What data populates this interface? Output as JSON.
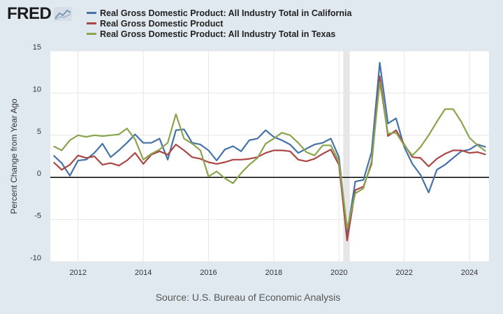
{
  "logo": {
    "text": "FRED",
    "icon": "line-graph-icon"
  },
  "source": "Source: U.S. Bureau of Economic Analysis",
  "colors": {
    "california": "#4572a7",
    "us": "#aa4643",
    "texas": "#89a54e",
    "background": "#e1e9f0",
    "plot_background": "#ffffff",
    "grid": "#e6e6e6",
    "zero_line": "#000000",
    "recession": "#e6e6e6"
  },
  "chart_data": {
    "type": "line",
    "title": "",
    "xlabel": "",
    "ylabel": "Percent Change from Year Ago",
    "xlim": [
      2011.15,
      2024.6
    ],
    "ylim": [
      -10,
      15
    ],
    "yticks": [
      "15",
      "10",
      "5",
      "0",
      "-5",
      "-10"
    ],
    "ytick_values": [
      15,
      10,
      5,
      0,
      -5,
      -10
    ],
    "xticks": [
      "2012",
      "2014",
      "2016",
      "2018",
      "2020",
      "2022",
      "2024"
    ],
    "xtick_values": [
      2012,
      2014,
      2016,
      2018,
      2020,
      2022,
      2024
    ],
    "recession_band": [
      2020.13,
      2020.33
    ],
    "x": [
      2011.25,
      2011.5,
      2011.75,
      2012.0,
      2012.25,
      2012.5,
      2012.75,
      2013.0,
      2013.25,
      2013.5,
      2013.75,
      2014.0,
      2014.25,
      2014.5,
      2014.75,
      2015.0,
      2015.25,
      2015.5,
      2015.75,
      2016.0,
      2016.25,
      2016.5,
      2016.75,
      2017.0,
      2017.25,
      2017.5,
      2017.75,
      2018.0,
      2018.25,
      2018.5,
      2018.75,
      2019.0,
      2019.25,
      2019.5,
      2019.75,
      2020.0,
      2020.25,
      2020.5,
      2020.75,
      2021.0,
      2021.25,
      2021.5,
      2021.75,
      2022.0,
      2022.25,
      2022.5,
      2022.75,
      2023.0,
      2023.25,
      2023.5,
      2023.75,
      2024.0,
      2024.25,
      2024.5
    ],
    "series": [
      {
        "name": "Real Gross Domestic Product: All Industry Total in California",
        "key": "california",
        "values": [
          2.6,
          1.7,
          0.2,
          2.0,
          2.1,
          2.9,
          4.0,
          2.4,
          3.2,
          4.1,
          5.1,
          4.1,
          4.1,
          4.6,
          2.1,
          5.6,
          5.7,
          4.1,
          3.9,
          3.2,
          2.0,
          3.3,
          3.7,
          3.1,
          4.4,
          4.6,
          5.6,
          4.8,
          4.4,
          3.9,
          2.9,
          3.4,
          3.9,
          4.1,
          4.6,
          2.4,
          -6.6,
          -0.5,
          -0.3,
          3.0,
          13.6,
          6.4,
          7.0,
          3.6,
          1.6,
          0.3,
          -1.8,
          0.9,
          1.5,
          2.3,
          3.1,
          3.3,
          3.9,
          3.6
        ]
      },
      {
        "name": "Real Gross Domestic Product",
        "key": "us",
        "values": [
          1.8,
          0.9,
          1.5,
          2.6,
          2.3,
          2.5,
          1.5,
          1.7,
          1.4,
          2.0,
          2.9,
          1.6,
          2.7,
          3.1,
          2.7,
          3.9,
          3.2,
          2.4,
          2.2,
          1.8,
          1.6,
          1.8,
          2.1,
          2.1,
          2.2,
          2.4,
          2.9,
          3.2,
          3.2,
          3.1,
          2.1,
          1.9,
          2.2,
          2.8,
          3.3,
          1.5,
          -7.5,
          -1.5,
          -1.1,
          1.6,
          12.0,
          4.9,
          5.6,
          3.9,
          2.4,
          2.3,
          1.3,
          2.2,
          2.8,
          3.2,
          3.2,
          2.9,
          3.0,
          2.7
        ]
      },
      {
        "name": "Real Gross Domestic Product: All Industry Total in Texas",
        "key": "texas",
        "values": [
          3.7,
          3.2,
          4.4,
          5.0,
          4.8,
          5.0,
          4.9,
          5.0,
          5.1,
          5.8,
          4.5,
          2.1,
          2.8,
          3.3,
          4.1,
          7.5,
          4.6,
          4.0,
          3.2,
          0.1,
          0.7,
          -0.1,
          -0.7,
          0.5,
          1.5,
          2.3,
          4.0,
          4.6,
          5.3,
          5.0,
          4.1,
          3.0,
          2.6,
          3.8,
          3.8,
          1.9,
          -6.1,
          -1.9,
          -1.3,
          1.9,
          11.3,
          5.2,
          5.3,
          3.8,
          2.6,
          3.6,
          5.0,
          6.6,
          8.1,
          8.1,
          6.6,
          4.7,
          3.8,
          3.1
        ]
      }
    ]
  }
}
